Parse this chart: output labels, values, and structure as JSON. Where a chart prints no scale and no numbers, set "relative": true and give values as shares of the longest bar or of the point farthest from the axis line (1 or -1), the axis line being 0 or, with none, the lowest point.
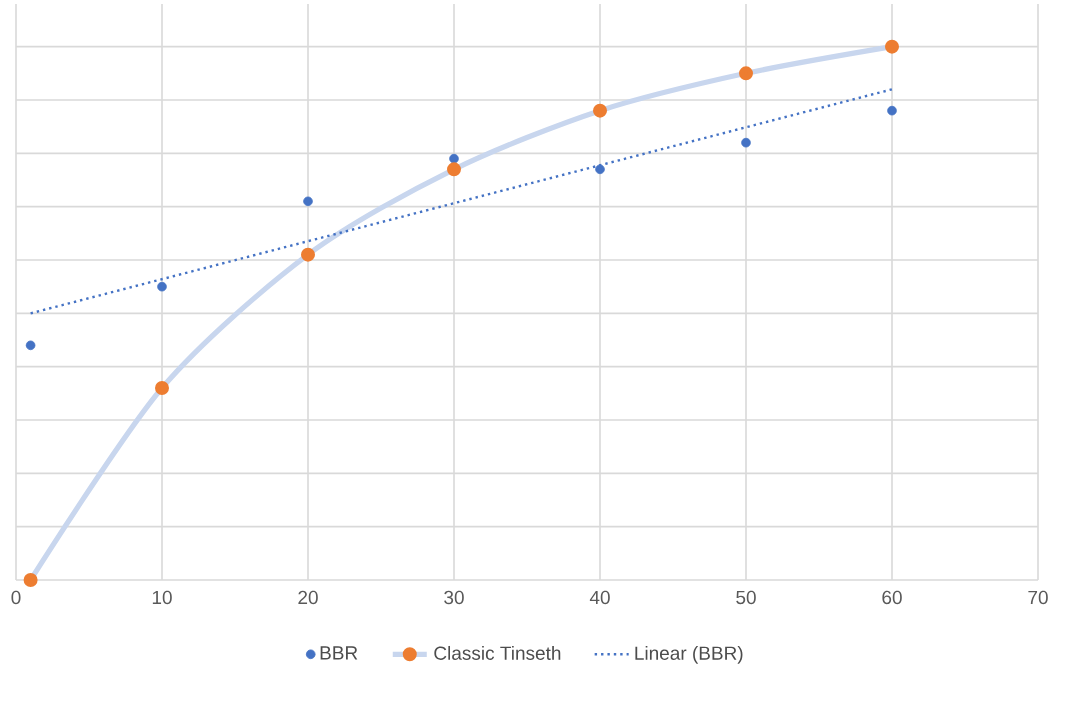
{
  "chart_data": {
    "type": "line",
    "relative": true,
    "grid": true,
    "legend": "bottom",
    "marker": "circle",
    "xlim": [
      0,
      70
    ],
    "xticks": [
      0,
      10,
      20,
      30,
      40,
      50,
      60,
      70
    ],
    "series": [
      {
        "name": "BBR",
        "type": "scatter",
        "color": "#4472c4",
        "x": [
          1,
          10,
          20,
          30,
          40,
          50,
          60
        ],
        "values": [
          0.44,
          0.55,
          0.71,
          0.79,
          0.77,
          0.82,
          0.88
        ]
      },
      {
        "name": "Classic Tinseth",
        "color": "#ed7d31",
        "x": [
          1,
          10,
          20,
          30,
          40,
          50,
          60
        ],
        "values": [
          0,
          0.36,
          0.61,
          0.77,
          0.88,
          0.95,
          1
        ]
      },
      {
        "name": "Linear (BBR)",
        "type": "line",
        "marker": "none",
        "line_style": "dotted",
        "color": "#4472c4",
        "x": [
          1,
          60
        ],
        "values": [
          0.5,
          0.92
        ]
      }
    ]
  }
}
